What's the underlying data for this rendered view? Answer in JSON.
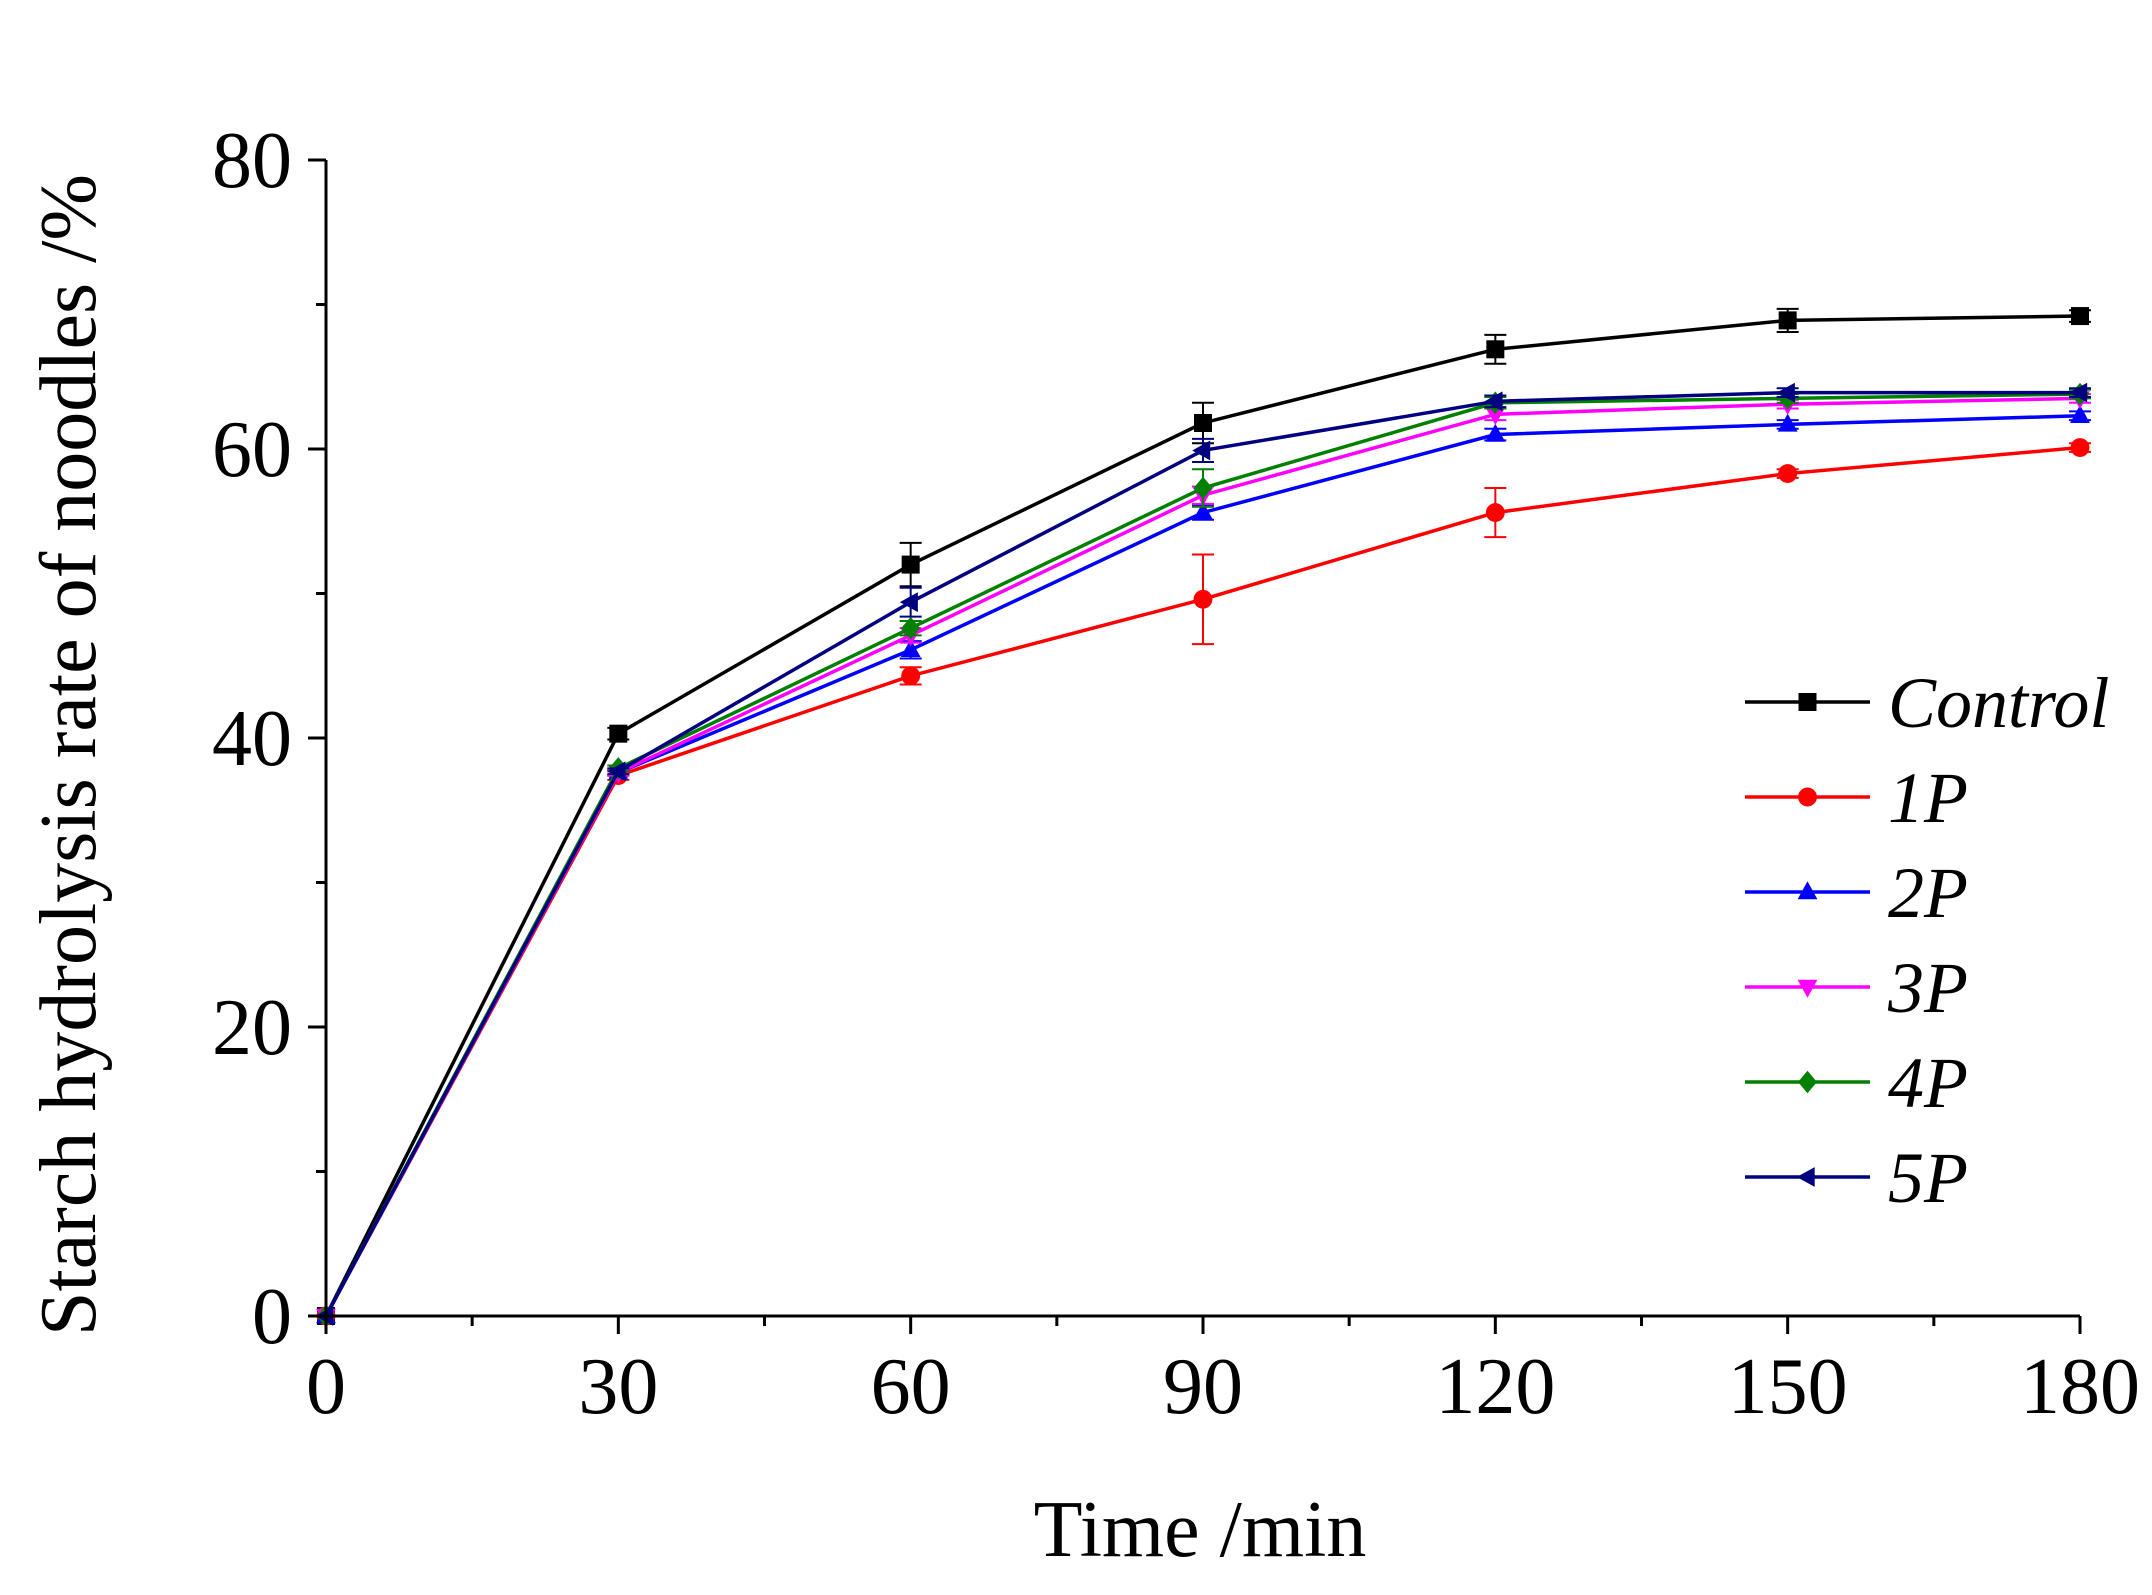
{
  "chart_data": {
    "type": "line",
    "title": "",
    "xlabel": "Time /min",
    "ylabel": "Starch hydrolysis rate of noodles /%",
    "xlim": [
      0,
      180
    ],
    "ylim": [
      0,
      80
    ],
    "xticks": [
      0,
      30,
      60,
      90,
      120,
      150,
      180
    ],
    "xtick_labels": [
      "0",
      "30",
      "60",
      "90",
      "120",
      "150",
      "180"
    ],
    "yticks": [
      0,
      20,
      40,
      60,
      80
    ],
    "ytick_labels": [
      "0",
      "20",
      "40",
      "60",
      "80"
    ],
    "x_minor_step": 15,
    "y_minor_step": 10,
    "legend_position": "right",
    "x": [
      0,
      30,
      60,
      90,
      120,
      150,
      180
    ],
    "series": [
      {
        "name": "Control",
        "color": "#000000",
        "marker": "square",
        "values": [
          0,
          40.3,
          52.0,
          61.8,
          66.9,
          68.9,
          69.2
        ],
        "errors": [
          0,
          0.4,
          1.5,
          1.4,
          1.0,
          0.8,
          0.4
        ]
      },
      {
        "name": "1P",
        "color": "#ff0000",
        "marker": "circle",
        "values": [
          0,
          37.4,
          44.3,
          49.6,
          55.6,
          58.3,
          60.1
        ],
        "errors": [
          0,
          0.3,
          0.6,
          3.1,
          1.7,
          0.3,
          0.3
        ]
      },
      {
        "name": "2P",
        "color": "#0000ff",
        "marker": "triangle-up",
        "values": [
          0,
          37.6,
          46.1,
          55.6,
          61.0,
          61.7,
          62.3
        ],
        "errors": [
          0,
          0.2,
          0.6,
          0.5,
          0.4,
          0.3,
          0.3
        ]
      },
      {
        "name": "3P",
        "color": "#ff00ff",
        "marker": "triangle-down",
        "values": [
          0,
          37.6,
          47.1,
          56.8,
          62.4,
          63.1,
          63.5
        ],
        "errors": [
          0,
          0.2,
          0.5,
          0.6,
          0.4,
          0.3,
          0.3
        ]
      },
      {
        "name": "4P",
        "color": "#008000",
        "marker": "diamond",
        "values": [
          0,
          37.9,
          47.6,
          57.3,
          63.2,
          63.5,
          63.8
        ],
        "errors": [
          0,
          0.2,
          0.5,
          1.3,
          0.4,
          0.3,
          0.3
        ]
      },
      {
        "name": "5P",
        "color": "#000080",
        "marker": "triangle-left",
        "values": [
          0,
          37.7,
          49.4,
          59.9,
          63.3,
          63.9,
          63.9
        ],
        "errors": [
          0,
          0.2,
          1.0,
          0.8,
          0.4,
          0.3,
          0.3
        ]
      }
    ]
  }
}
